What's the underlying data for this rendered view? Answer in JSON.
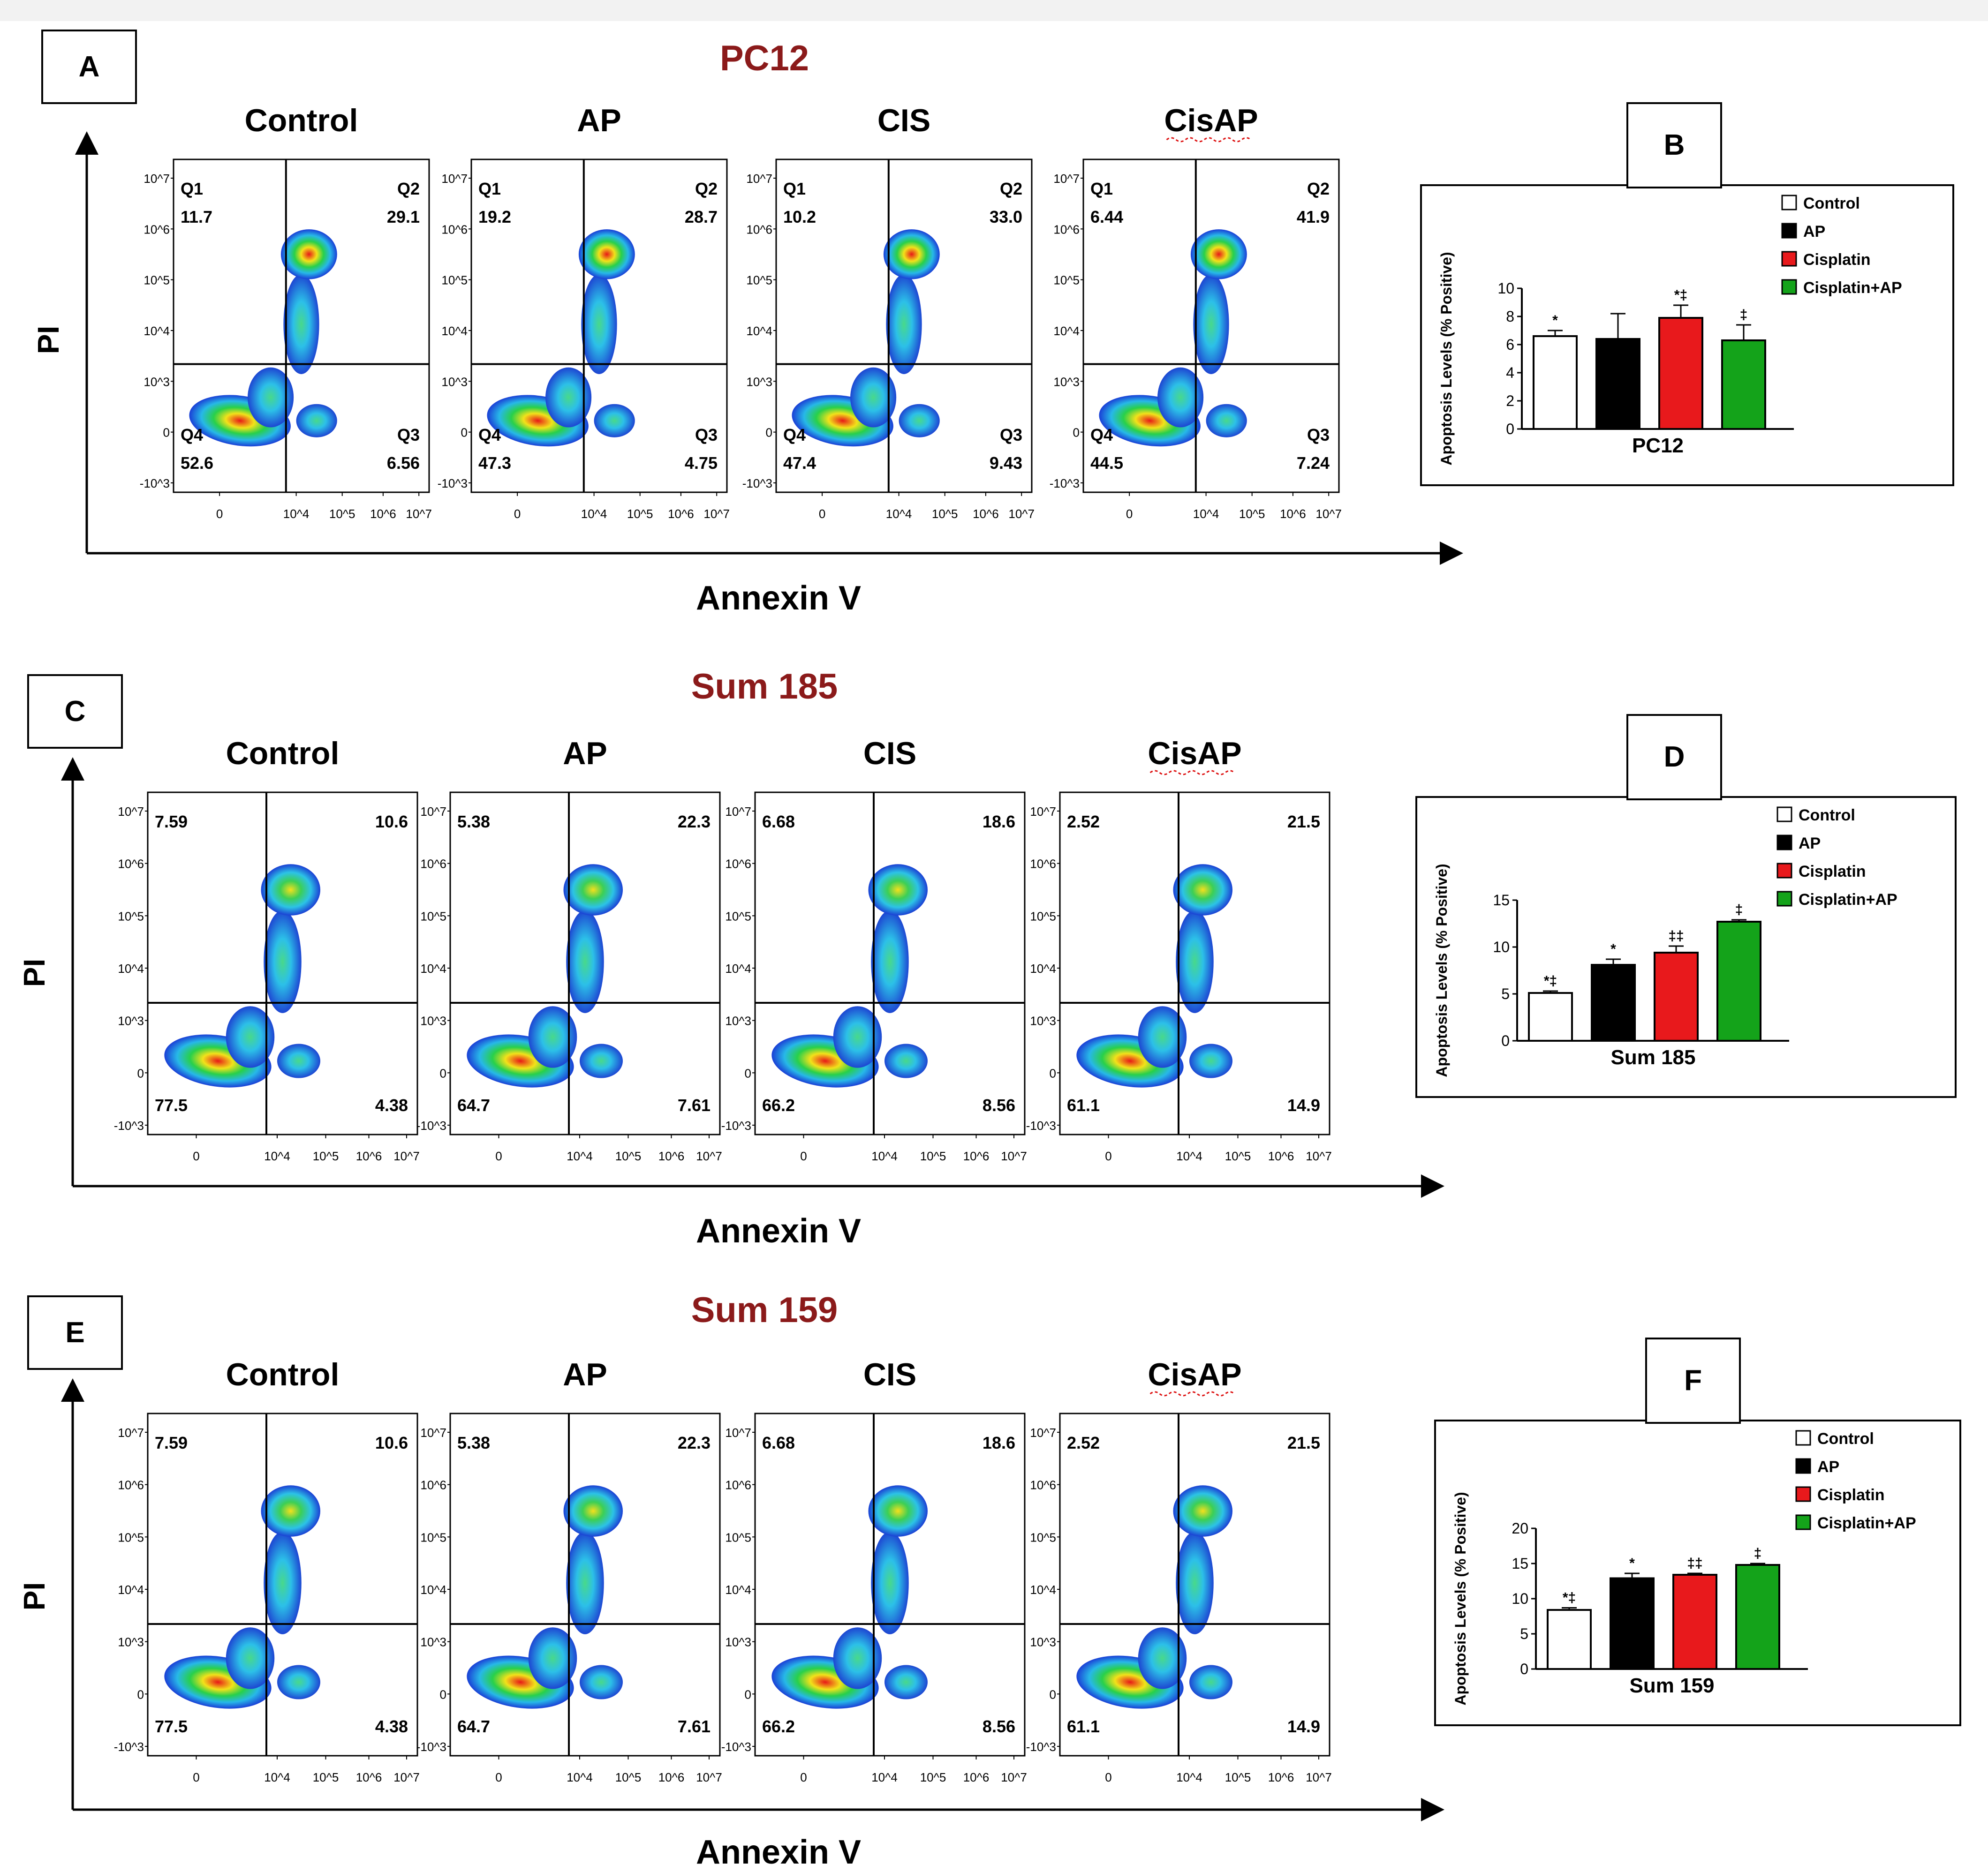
{
  "figure": {
    "panels": [
      {
        "letter": "A",
        "title": "PC12",
        "x_axis_label": "Annexin V",
        "y_axis_label": "PI",
        "plots": [
          {
            "label": "Control",
            "q1": "11.7",
            "q2": "29.1",
            "q3": "6.56",
            "q4": "52.6",
            "quadrant_names": [
              "Q1",
              "Q2",
              "Q3",
              "Q4"
            ]
          },
          {
            "label": "AP",
            "q1": "19.2",
            "q2": "28.7",
            "q3": "4.75",
            "q4": "47.3",
            "quadrant_names": [
              "Q1",
              "Q2",
              "Q3",
              "Q4"
            ]
          },
          {
            "label": "CIS",
            "q1": "10.2",
            "q2": "33.0",
            "q3": "9.43",
            "q4": "47.4",
            "quadrant_names": [
              "Q1",
              "Q2",
              "Q3",
              "Q4"
            ]
          },
          {
            "label": "CisAP",
            "q1": "6.44",
            "q2": "41.9",
            "q3": "7.24",
            "q4": "44.5",
            "quadrant_names": [
              "Q1",
              "Q2",
              "Q3",
              "Q4"
            ]
          }
        ]
      },
      {
        "letter": "C",
        "title": "Sum 185",
        "x_axis_label": "Annexin V",
        "y_axis_label": "PI",
        "plots": [
          {
            "label": "Control",
            "q1": "7.59",
            "q2": "10.6",
            "q3": "4.38",
            "q4": "77.5",
            "quadrant_names": []
          },
          {
            "label": "AP",
            "q1": "5.38",
            "q2": "22.3",
            "q3": "7.61",
            "q4": "64.7",
            "quadrant_names": []
          },
          {
            "label": "CIS",
            "q1": "6.68",
            "q2": "18.6",
            "q3": "8.56",
            "q4": "66.2",
            "quadrant_names": []
          },
          {
            "label": "CisAP",
            "q1": "2.52",
            "q2": "21.5",
            "q3": "14.9",
            "q4": "61.1",
            "quadrant_names": []
          }
        ]
      },
      {
        "letter": "E",
        "title": "Sum 159",
        "x_axis_label": "Annexin V",
        "y_axis_label": "PI",
        "plots": [
          {
            "label": "Control",
            "q1": "7.59",
            "q2": "10.6",
            "q3": "4.38",
            "q4": "77.5",
            "quadrant_names": []
          },
          {
            "label": "AP",
            "q1": "5.38",
            "q2": "22.3",
            "q3": "7.61",
            "q4": "64.7",
            "quadrant_names": []
          },
          {
            "label": "CIS",
            "q1": "6.68",
            "q2": "18.6",
            "q3": "8.56",
            "q4": "66.2",
            "quadrant_names": []
          },
          {
            "label": "CisAP",
            "q1": "2.52",
            "q2": "21.5",
            "q3": "14.9",
            "q4": "61.1",
            "quadrant_names": []
          }
        ]
      }
    ],
    "flow_axis_ticks": {
      "y": [
        "10^7",
        "10^6",
        "10^5",
        "10^4",
        "10^3",
        "0",
        "-10^3"
      ],
      "x": [
        "0",
        "10^4",
        "10^5",
        "10^6",
        "10^7"
      ]
    }
  },
  "colors": {
    "title_red": "#8b1a1a",
    "control": "#ffffff",
    "ap": "#000000",
    "cisplatin": "#e8191c",
    "cisplatin_ap": "#14a31a"
  },
  "chart_data": [
    {
      "type": "bar",
      "panel_letter": "B",
      "xlabel": "PC12",
      "ylabel": "Apoptosis Levels (% Positive)",
      "ylim": [
        0,
        10
      ],
      "yticks": [
        0,
        2,
        4,
        6,
        8,
        10
      ],
      "legend": [
        "Control",
        "AP",
        "Cisplatin",
        "Cisplatin+AP"
      ],
      "values": [
        6.6,
        6.4,
        7.9,
        6.3
      ],
      "errors": [
        0.4,
        1.8,
        0.9,
        1.1
      ],
      "annotations": [
        "*",
        "",
        "*‡",
        "‡"
      ]
    },
    {
      "type": "bar",
      "panel_letter": "D",
      "xlabel": "Sum 185",
      "ylabel": "Apoptosis Levels (% Positive)",
      "ylim": [
        0,
        15
      ],
      "yticks": [
        0,
        5,
        10,
        15
      ],
      "legend": [
        "Control",
        "AP",
        "Cisplatin",
        "Cisplatin+AP"
      ],
      "values": [
        5.1,
        8.1,
        9.4,
        12.7
      ],
      "errors": [
        0.2,
        0.6,
        0.7,
        0.2
      ],
      "annotations": [
        "*‡",
        "*",
        "‡‡",
        "‡"
      ]
    },
    {
      "type": "bar",
      "panel_letter": "F",
      "xlabel": "Sum 159",
      "ylabel": "Apoptosis Levels (% Positive)",
      "ylim": [
        0,
        20
      ],
      "yticks": [
        0,
        5,
        10,
        15,
        20
      ],
      "legend": [
        "Control",
        "AP",
        "Cisplatin",
        "Cisplatin+AP"
      ],
      "values": [
        8.4,
        12.9,
        13.4,
        14.8
      ],
      "errors": [
        0.3,
        0.7,
        0.2,
        0.2
      ],
      "annotations": [
        "*‡",
        "*",
        "‡‡",
        "‡"
      ]
    }
  ]
}
